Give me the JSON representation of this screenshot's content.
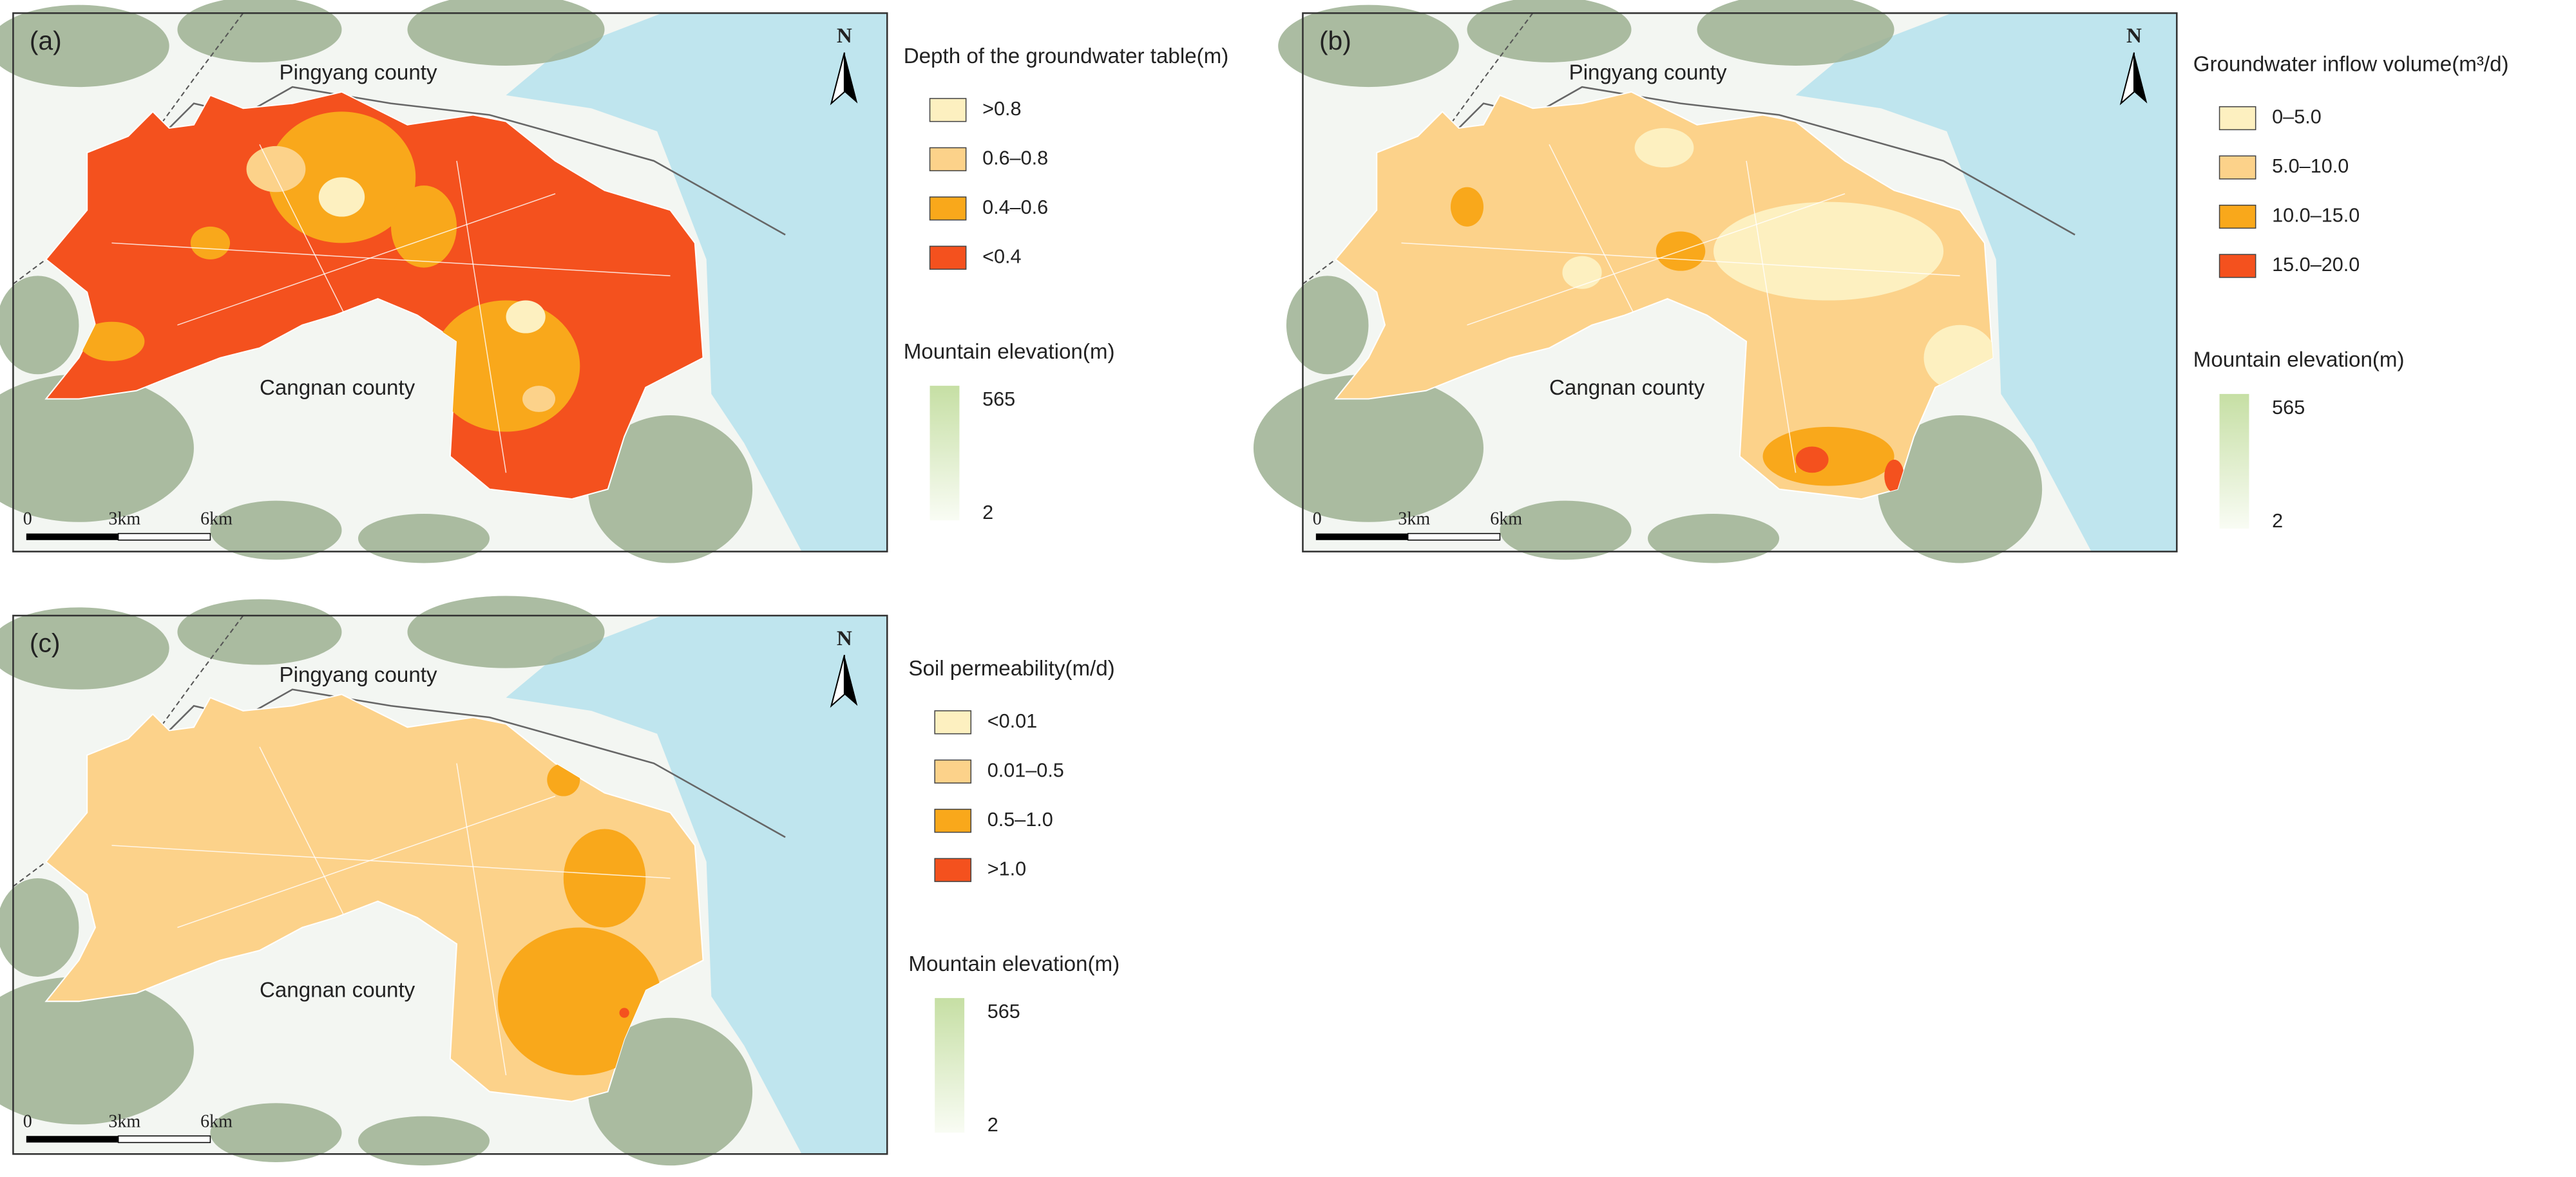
{
  "panels": [
    {
      "label": "(a)",
      "north": "N",
      "county_top": "Pingyang county",
      "county_bottom": "Cangnan county",
      "scale": [
        "0",
        "3km",
        "6km"
      ],
      "legend_title": "Depth of the groundwater table(m)",
      "legend": [
        {
          "label": ">0.8",
          "color": "#fdf0c0"
        },
        {
          "label": "0.6–0.8",
          "color": "#fcd28a"
        },
        {
          "label": "0.4–0.6",
          "color": "#f9a81b"
        },
        {
          "label": "<0.4",
          "color": "#f4511e"
        }
      ],
      "elevation_title": "Mountain elevation(m)",
      "elevation_max": "565",
      "elevation_min": "2"
    },
    {
      "label": "(b)",
      "north": "N",
      "county_top": "Pingyang county",
      "county_bottom": "Cangnan county",
      "scale": [
        "0",
        "3km",
        "6km"
      ],
      "legend_title": "Groundwater inflow volume(m³/d)",
      "legend": [
        {
          "label": "0–5.0",
          "color": "#fdf0c0"
        },
        {
          "label": "5.0–10.0",
          "color": "#fcd28a"
        },
        {
          "label": "10.0–15.0",
          "color": "#f9a81b"
        },
        {
          "label": "15.0–20.0",
          "color": "#f4511e"
        }
      ],
      "elevation_title": "Mountain elevation(m)",
      "elevation_max": "565",
      "elevation_min": "2"
    },
    {
      "label": "(c)",
      "north": "N",
      "county_top": "Pingyang county",
      "county_bottom": "Cangnan county",
      "scale": [
        "0",
        "3km",
        "6km"
      ],
      "legend_title": "Soil permeability(m/d)",
      "legend": [
        {
          "label": "<0.01",
          "color": "#fdf0c0"
        },
        {
          "label": "0.01–0.5",
          "color": "#fcd28a"
        },
        {
          "label": "0.5–1.0",
          "color": "#f9a81b"
        },
        {
          "label": ">1.0",
          "color": "#f4511e"
        }
      ],
      "elevation_title": "Mountain elevation(m)",
      "elevation_max": "565",
      "elevation_min": "2"
    }
  ]
}
